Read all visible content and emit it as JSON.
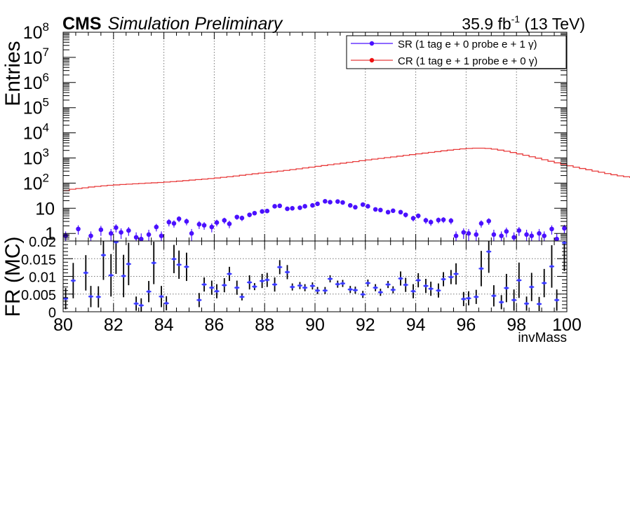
{
  "header": {
    "experiment": "CMS",
    "status": "Simulation Preliminary",
    "lumi_value": "35.9 fb",
    "lumi_exp": "-1",
    "energy": " (13 TeV)"
  },
  "legend": {
    "sr_label": "SR (1 tag e + 0 probe e + 1 γ)",
    "cr_label": "CR (1 tag e + 1 probe e + 0 γ)"
  },
  "colors": {
    "sr": "#4a10ff",
    "cr": "#e83b3b",
    "fr_point": "#3a3aff",
    "error_bar": "#000000",
    "grid": "#777777"
  },
  "chart_data": [
    {
      "id": "upper-panel",
      "type": "line",
      "ylabel": "Entries",
      "xlim": [
        80,
        100
      ],
      "ylim": [
        0.5,
        100000000
      ],
      "yscale": "log",
      "x_gridlines": [
        82,
        84,
        86,
        88,
        90,
        92,
        94,
        96,
        98
      ],
      "grid": "vertical-dotted",
      "legend_position": "top-right",
      "y_ticks": [
        {
          "value": 1,
          "label": "1",
          "exp": ""
        },
        {
          "value": 10,
          "label": "10",
          "exp": ""
        },
        {
          "value": 100,
          "label": "10",
          "exp": "2"
        },
        {
          "value": 1000,
          "label": "10",
          "exp": "3"
        },
        {
          "value": 10000,
          "label": "10",
          "exp": "4"
        },
        {
          "value": 100000,
          "label": "10",
          "exp": "5"
        },
        {
          "value": 1000000,
          "label": "10",
          "exp": "6"
        },
        {
          "value": 10000000,
          "label": "10",
          "exp": "7"
        },
        {
          "value": 100000000,
          "label": "10",
          "exp": "8"
        }
      ],
      "series": [
        {
          "name": "CR (1 tag e + 1 probe e + 0 γ)",
          "kind": "step",
          "bin_width": 0.25,
          "x_start": 80,
          "values": [
            50,
            57,
            61,
            65,
            70,
            74,
            78,
            82,
            85,
            88,
            91,
            94,
            97,
            100,
            103,
            106,
            110,
            115,
            120,
            126,
            132,
            138,
            145,
            152,
            160,
            170,
            180,
            192,
            205,
            220,
            235,
            250,
            265,
            280,
            300,
            320,
            345,
            370,
            400,
            430,
            465,
            500,
            540,
            580,
            620,
            670,
            720,
            780,
            840,
            900,
            960,
            1030,
            1100,
            1180,
            1270,
            1360,
            1460,
            1560,
            1670,
            1790,
            1920,
            2050,
            2180,
            2300,
            2400,
            2450,
            2450,
            2400,
            2250,
            2050,
            1850,
            1650,
            1450,
            1280,
            1120,
            980,
            850,
            740,
            640,
            560,
            490,
            430,
            380,
            340,
            300,
            270,
            240,
            215,
            195,
            180,
            168,
            156,
            145,
            135,
            127,
            120,
            114,
            108,
            100,
            90
          ]
        },
        {
          "name": "SR (1 tag e + 0 probe e + 1 γ)",
          "kind": "points",
          "x": [
            80.1,
            80.6,
            81.1,
            81.5,
            81.9,
            82.1,
            82.3,
            82.6,
            82.9,
            83.1,
            83.4,
            83.7,
            83.9,
            84.2,
            84.4,
            84.6,
            84.9,
            85.1,
            85.4,
            85.6,
            85.9,
            86.1,
            86.4,
            86.6,
            86.9,
            87.1,
            87.4,
            87.6,
            87.9,
            88.1,
            88.4,
            88.6,
            88.9,
            89.1,
            89.4,
            89.6,
            89.9,
            90.1,
            90.4,
            90.6,
            90.9,
            91.1,
            91.4,
            91.6,
            91.9,
            92.1,
            92.4,
            92.6,
            92.9,
            93.1,
            93.4,
            93.6,
            93.9,
            94.1,
            94.4,
            94.6,
            94.9,
            95.1,
            95.4,
            95.6,
            95.9,
            96.1,
            96.4,
            96.6,
            96.9,
            97.1,
            97.4,
            97.6,
            97.9,
            98.1,
            98.4,
            98.6,
            98.9,
            99.1,
            99.4,
            99.6,
            99.9
          ],
          "y": [
            0.8,
            1.5,
            0.8,
            1.4,
            1.0,
            1.7,
            1.1,
            1.3,
            0.7,
            0.6,
            0.9,
            1.8,
            0.8,
            2.8,
            2.5,
            3.8,
            3.0,
            1.0,
            2.3,
            2.1,
            1.8,
            2.7,
            3.3,
            2.4,
            4.5,
            4.1,
            5.5,
            6.4,
            7.5,
            7.8,
            12.0,
            12.5,
            9.5,
            10.0,
            10.5,
            12.0,
            13.0,
            15.0,
            19.0,
            17.5,
            18.5,
            17.0,
            13.0,
            11.0,
            14.0,
            12.0,
            9.0,
            8.5,
            7.0,
            8.0,
            7.0,
            5.5,
            4.0,
            5.0,
            3.3,
            2.8,
            3.4,
            3.5,
            3.2,
            0.8,
            1.1,
            1.0,
            0.9,
            2.5,
            3.1,
            0.9,
            0.8,
            1.2,
            0.7,
            1.3,
            0.9,
            0.8,
            1.0,
            0.8,
            1.5,
            0.6,
            1.6
          ],
          "yerr": [
            0.4,
            0.6,
            0.4,
            0.6,
            0.5,
            0.6,
            0.5,
            0.5,
            0.4,
            0.4,
            0.5,
            0.6,
            0.4,
            0.9,
            0.8,
            1.0,
            0.9,
            0.5,
            0.8,
            0.7,
            0.7,
            0.8,
            0.9,
            0.8,
            1.0,
            1.0,
            1.1,
            1.2,
            1.3,
            1.3,
            1.7,
            1.7,
            1.5,
            1.5,
            1.6,
            1.7,
            1.8,
            1.9,
            2.2,
            2.1,
            2.1,
            2.0,
            1.8,
            1.6,
            1.8,
            1.7,
            1.5,
            1.4,
            1.3,
            1.4,
            1.3,
            1.2,
            1.0,
            1.1,
            0.9,
            0.8,
            0.9,
            0.9,
            0.9,
            0.4,
            0.5,
            0.5,
            0.5,
            0.8,
            0.9,
            0.5,
            0.4,
            0.5,
            0.4,
            0.5,
            0.5,
            0.4,
            0.5,
            0.4,
            0.6,
            0.4,
            0.6
          ]
        }
      ]
    },
    {
      "id": "ratio-panel",
      "type": "scatter",
      "ylabel": "FR (MC)",
      "xlabel": "invMass",
      "xlim": [
        80,
        100
      ],
      "ylim": [
        0,
        0.02
      ],
      "y_gridlines": [
        0.005,
        0.01,
        0.015
      ],
      "x_gridlines": [
        82,
        84,
        86,
        88,
        90,
        92,
        94,
        96,
        98
      ],
      "x_ticks": [
        80,
        82,
        84,
        86,
        88,
        90,
        92,
        94,
        96,
        98,
        100
      ],
      "y_ticks": [
        {
          "value": 0,
          "label": "0"
        },
        {
          "value": 0.005,
          "label": "0.005"
        },
        {
          "value": 0.01,
          "label": "0.01"
        },
        {
          "value": 0.015,
          "label": "0.015"
        },
        {
          "value": 0.02,
          "label": "0.02"
        }
      ],
      "series": [
        {
          "name": "FR",
          "x": [
            80.1,
            80.4,
            80.9,
            81.1,
            81.4,
            81.6,
            81.9,
            82.1,
            82.4,
            82.6,
            82.9,
            83.1,
            83.4,
            83.6,
            83.9,
            84.1,
            84.4,
            84.6,
            84.9,
            85.4,
            85.6,
            85.9,
            86.1,
            86.4,
            86.6,
            86.9,
            87.1,
            87.4,
            87.6,
            87.9,
            88.1,
            88.4,
            88.6,
            88.9,
            89.1,
            89.4,
            89.6,
            89.9,
            90.1,
            90.4,
            90.6,
            90.9,
            91.1,
            91.4,
            91.6,
            91.9,
            92.1,
            92.4,
            92.6,
            92.9,
            93.1,
            93.4,
            93.6,
            93.9,
            94.1,
            94.4,
            94.6,
            94.9,
            95.1,
            95.4,
            95.6,
            95.9,
            96.1,
            96.4,
            96.6,
            96.9,
            97.1,
            97.4,
            97.6,
            97.9,
            98.1,
            98.4,
            98.6,
            98.9,
            99.1,
            99.4,
            99.6,
            99.9
          ],
          "y": [
            0.0037,
            0.0088,
            0.011,
            0.0043,
            0.0042,
            0.016,
            0.0103,
            0.0197,
            0.0101,
            0.0135,
            0.0023,
            0.0018,
            0.0057,
            0.0138,
            0.0043,
            0.0024,
            0.0149,
            0.0133,
            0.0127,
            0.0033,
            0.0077,
            0.0068,
            0.0058,
            0.0075,
            0.0107,
            0.0068,
            0.0042,
            0.0083,
            0.0071,
            0.0087,
            0.009,
            0.0077,
            0.0126,
            0.0112,
            0.007,
            0.0074,
            0.0068,
            0.0073,
            0.006,
            0.006,
            0.0093,
            0.0078,
            0.008,
            0.0063,
            0.0061,
            0.0049,
            0.0081,
            0.0068,
            0.0055,
            0.0077,
            0.0062,
            0.0094,
            0.0076,
            0.0058,
            0.0089,
            0.0073,
            0.0065,
            0.006,
            0.0092,
            0.0098,
            0.0107,
            0.0036,
            0.0038,
            0.0042,
            0.0122,
            0.017,
            0.0045,
            0.0027,
            0.0067,
            0.0033,
            0.0089,
            0.0023,
            0.007,
            0.0022,
            0.0081,
            0.0128,
            0.0033,
            0.0195
          ],
          "yerr": [
            0.003,
            0.005,
            0.005,
            0.003,
            0.003,
            0.007,
            0.006,
            0.009,
            0.006,
            0.006,
            0.002,
            0.002,
            0.003,
            0.006,
            0.003,
            0.002,
            0.004,
            0.004,
            0.004,
            0.002,
            0.002,
            0.002,
            0.002,
            0.002,
            0.002,
            0.002,
            0.001,
            0.002,
            0.001,
            0.002,
            0.002,
            0.002,
            0.002,
            0.002,
            0.001,
            0.001,
            0.001,
            0.001,
            0.001,
            0.001,
            0.001,
            0.001,
            0.001,
            0.001,
            0.001,
            0.001,
            0.001,
            0.001,
            0.001,
            0.001,
            0.001,
            0.002,
            0.002,
            0.002,
            0.002,
            0.002,
            0.002,
            0.002,
            0.002,
            0.002,
            0.003,
            0.002,
            0.002,
            0.002,
            0.005,
            0.006,
            0.003,
            0.002,
            0.004,
            0.003,
            0.005,
            0.002,
            0.004,
            0.002,
            0.004,
            0.006,
            0.003,
            0.008
          ]
        }
      ]
    }
  ]
}
